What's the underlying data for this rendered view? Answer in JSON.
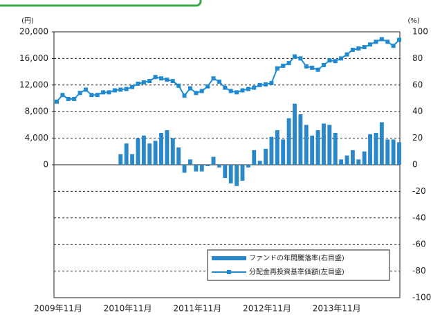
{
  "chart_data": {
    "type": "bar",
    "y_label": "(円)",
    "y2_label": "(%)",
    "categories": [
      "2009年11月",
      null,
      null,
      null,
      null,
      null,
      null,
      null,
      null,
      null,
      null,
      null,
      "2010年11月",
      null,
      null,
      null,
      null,
      null,
      null,
      null,
      null,
      null,
      null,
      null,
      "2011年11月",
      null,
      null,
      null,
      null,
      null,
      null,
      null,
      null,
      null,
      null,
      null,
      "2012年11月",
      null,
      null,
      null,
      null,
      null,
      null,
      null,
      null,
      null,
      null,
      null,
      "2013年11月",
      null,
      null,
      null,
      null,
      null,
      null,
      null,
      null,
      null,
      null,
      null
    ],
    "series": [
      {
        "name": "ファンドの年間騰落率(右目盛)",
        "type": "bar",
        "axis": "y2",
        "color": "#2a87c8",
        "values": [
          null,
          null,
          null,
          null,
          null,
          null,
          null,
          null,
          null,
          null,
          null,
          8,
          16,
          8,
          20,
          22,
          16,
          18,
          24,
          26,
          20,
          13,
          -6,
          4,
          -5,
          -5,
          -1,
          6,
          -2,
          -10,
          -14,
          -16,
          -12,
          -2,
          11,
          3,
          12,
          21,
          26,
          19,
          35,
          46,
          38,
          30,
          22,
          26,
          31,
          30,
          24,
          4,
          7,
          11,
          4,
          10,
          23,
          24,
          32,
          19,
          19,
          17
        ]
      },
      {
        "name": "分配金再投資基準価額(左目盛)",
        "type": "line",
        "color": "#1f8ad0",
        "values": [
          9500,
          10500,
          9900,
          9900,
          10800,
          11300,
          10500,
          10500,
          10900,
          10900,
          11200,
          11300,
          11400,
          11700,
          12200,
          12400,
          12600,
          13200,
          13000,
          12800,
          12600,
          11900,
          10400,
          11500,
          10800,
          11100,
          11800,
          13000,
          12500,
          11600,
          11100,
          10900,
          11200,
          11400,
          11600,
          12000,
          12100,
          12300,
          14500,
          14900,
          15300,
          16300,
          16000,
          14800,
          14600,
          14300,
          15000,
          15700,
          15600,
          16000,
          16600,
          17300,
          17500,
          17700,
          18100,
          18500,
          18900,
          18500,
          17900,
          18800
        ]
      }
    ],
    "ylim": [
      -20000,
      20000
    ],
    "yticks": [
      0,
      {
        "value": 4000,
        "label": "4,000"
      },
      {
        "value": 8000,
        "label": "8,000"
      },
      {
        "value": 12000,
        "label": "12,000"
      },
      {
        "value": 16000,
        "label": "16,000"
      },
      {
        "value": 20000,
        "label": "20,000"
      }
    ],
    "y2lim": [
      -100,
      100
    ],
    "y2ticks": [
      -100,
      -80,
      -60,
      -40,
      -20,
      0,
      20,
      40,
      60,
      80,
      100
    ],
    "grid": true,
    "legend": "lower right"
  }
}
